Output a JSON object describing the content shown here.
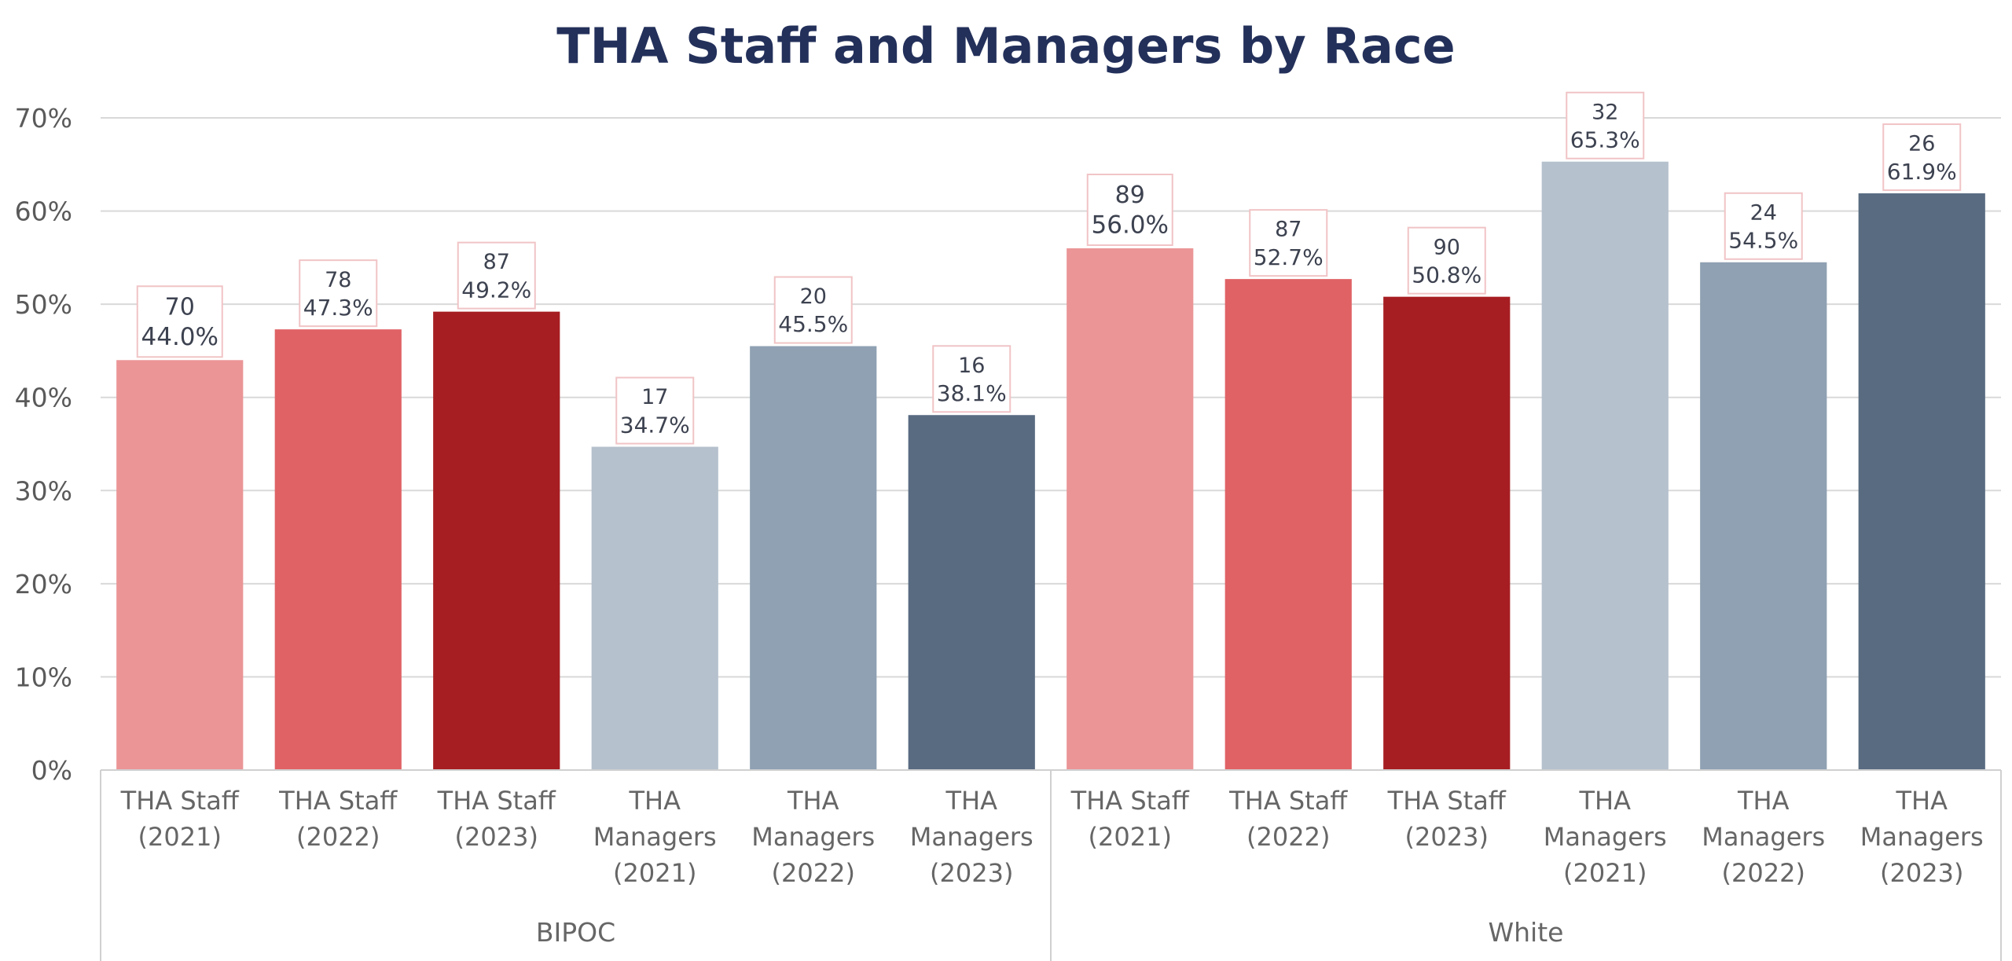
{
  "chart_data": {
    "type": "bar",
    "title": "THA Staff and Managers by Race",
    "xlabel": "",
    "ylabel": "",
    "ylim": [
      0,
      70
    ],
    "y_ticks": [
      "0%",
      "10%",
      "20%",
      "30%",
      "40%",
      "50%",
      "60%",
      "70%"
    ],
    "y_tick_values": [
      0,
      10,
      20,
      30,
      40,
      50,
      60,
      70
    ],
    "grid": true,
    "legend": "none",
    "groups": [
      {
        "name": "BIPOC",
        "bars": [
          {
            "category": [
              "THA Staff",
              "(2021)"
            ],
            "count": "70",
            "percent_label": "44.0%",
            "value": 44.0,
            "color": "#eb9597"
          },
          {
            "category": [
              "THA Staff",
              "(2022)"
            ],
            "count": "78",
            "percent_label": "47.3%",
            "value": 47.3,
            "color": "#e06265"
          },
          {
            "category": [
              "THA Staff",
              "(2023)"
            ],
            "count": "87",
            "percent_label": "49.2%",
            "value": 49.2,
            "color": "#a61e22"
          },
          {
            "category": [
              "THA",
              "Managers",
              "(2021)"
            ],
            "count": "17",
            "percent_label": "34.7%",
            "value": 34.7,
            "color": "#b5c1cd"
          },
          {
            "category": [
              "THA",
              "Managers",
              "(2022)"
            ],
            "count": "20",
            "percent_label": "45.5%",
            "value": 45.5,
            "color": "#8fa1b3"
          },
          {
            "category": [
              "THA",
              "Managers",
              "(2023)"
            ],
            "count": "16",
            "percent_label": "38.1%",
            "value": 38.1,
            "color": "#586b81"
          }
        ]
      },
      {
        "name": "White",
        "bars": [
          {
            "category": [
              "THA Staff",
              "(2021)"
            ],
            "count": "89",
            "percent_label": "56.0%",
            "value": 56.0,
            "color": "#eb9597"
          },
          {
            "category": [
              "THA Staff",
              "(2022)"
            ],
            "count": "87",
            "percent_label": "52.7%",
            "value": 52.7,
            "color": "#e06265"
          },
          {
            "category": [
              "THA Staff",
              "(2023)"
            ],
            "count": "90",
            "percent_label": "50.8%",
            "value": 50.8,
            "color": "#a61e22"
          },
          {
            "category": [
              "THA",
              "Managers",
              "(2021)"
            ],
            "count": "32",
            "percent_label": "65.3%",
            "value": 65.3,
            "color": "#b5c1cd"
          },
          {
            "category": [
              "THA",
              "Managers",
              "(2022)"
            ],
            "count": "24",
            "percent_label": "54.5%",
            "value": 54.5,
            "color": "#8fa1b3"
          },
          {
            "category": [
              "THA",
              "Managers",
              "(2023)"
            ],
            "count": "26",
            "percent_label": "61.9%",
            "value": 61.9,
            "color": "#586b81"
          }
        ]
      }
    ],
    "colors": {
      "title": "#23305a",
      "gridline": "#d9d9d9",
      "axis": "#d0d0d0",
      "label_border": "#f1c4c6",
      "label_text": "#3d4250"
    }
  }
}
